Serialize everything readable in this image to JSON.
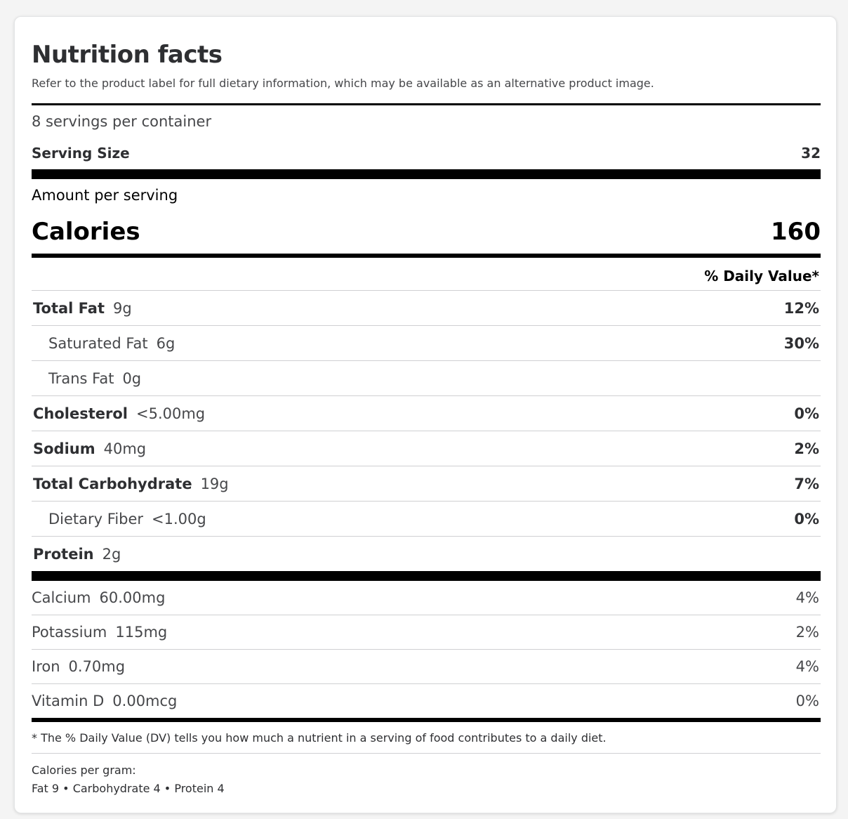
{
  "header": {
    "title": "Nutrition facts",
    "subtitle": "Refer to the product label for full dietary information, which may be available as an alternative product image."
  },
  "servings": {
    "per_container": "8 servings per container",
    "size_label": "Serving Size",
    "size_value": "32"
  },
  "amount_label": "Amount per serving",
  "calories": {
    "label": "Calories",
    "value": "160"
  },
  "daily_value_header": "% Daily Value*",
  "nutrients": [
    {
      "name": "Total Fat",
      "amount": "9g",
      "dv": "12%"
    },
    {
      "name": "Saturated Fat",
      "amount": "6g",
      "dv": "30%"
    },
    {
      "name": "Trans Fat",
      "amount": "0g",
      "dv": ""
    },
    {
      "name": "Cholesterol",
      "amount": "<5.00mg",
      "dv": "0%"
    },
    {
      "name": "Sodium",
      "amount": "40mg",
      "dv": "2%"
    },
    {
      "name": "Total Carbohydrate",
      "amount": "19g",
      "dv": "7%"
    },
    {
      "name": "Dietary Fiber",
      "amount": "<1.00g",
      "dv": "0%"
    },
    {
      "name": "Protein",
      "amount": "2g",
      "dv": ""
    }
  ],
  "vitamins": [
    {
      "name": "Calcium",
      "amount": "60.00mg",
      "dv": "4%"
    },
    {
      "name": "Potassium",
      "amount": "115mg",
      "dv": "2%"
    },
    {
      "name": "Iron",
      "amount": "0.70mg",
      "dv": "4%"
    },
    {
      "name": "Vitamin D",
      "amount": "0.00mcg",
      "dv": "0%"
    }
  ],
  "footnote": "* The % Daily Value (DV) tells you how much a nutrient in a serving of food contributes to a daily diet.",
  "calories_per_gram": {
    "label": "Calories per gram:",
    "values": "Fat 9 • Carbohydrate 4 • Protein 4"
  }
}
